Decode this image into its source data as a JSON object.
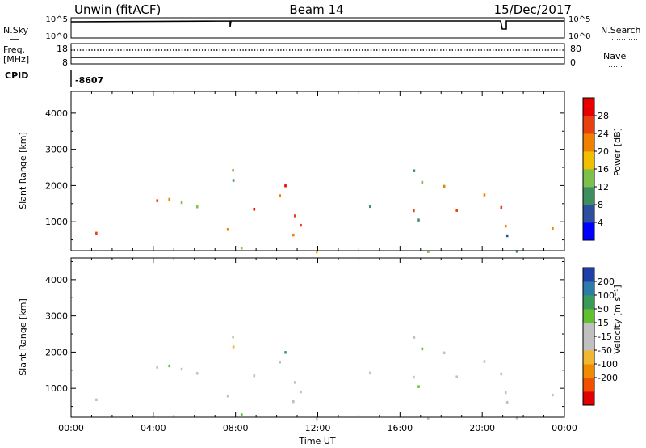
{
  "header": {
    "station": "Unwin (fitACF)",
    "beam": "Beam 14",
    "date": "15/Dec/2017"
  },
  "strips": {
    "nsky_label": "N.Sky",
    "nsearch_label": "N.Search",
    "freq_label_line1": "Freq.",
    "freq_label_line2": "[MHz]",
    "nave_label": "Nave",
    "cpid_label": "CPID",
    "cpid_value": "-8607",
    "noise_ticks": [
      "10^5",
      "10^0"
    ],
    "freq_ticks": [
      "18",
      "8"
    ],
    "nave_ticks": [
      "80",
      "0"
    ]
  },
  "colors": {
    "power_scale": [
      "#0000ff",
      "#2e4f9e",
      "#3d8f5f",
      "#7dc04a",
      "#f0c000",
      "#f08000",
      "#e84010",
      "#e80000"
    ],
    "velocity_scale": [
      "#e00000",
      "#f05000",
      "#f08c00",
      "#f0b830",
      "#c0c0c0",
      "#c0c0c0",
      "#60c030",
      "#3a9a58",
      "#2e7aa8",
      "#1e3ea8"
    ]
  },
  "chart_data": [
    {
      "type": "heatmap",
      "panel": "power",
      "ylabel": "Slant Range [km]",
      "xlabel": "",
      "x_ticks": [
        "00:00",
        "04:00",
        "08:00",
        "12:00",
        "16:00",
        "20:00",
        "00:00"
      ],
      "y_ticks": [
        "1000",
        "2000",
        "3000",
        "4000"
      ],
      "ylim": [
        200,
        4600
      ],
      "xlim_hours": [
        0,
        24
      ],
      "colorbar": {
        "label": "Power [dB]",
        "ticks": [
          "4",
          "8",
          "12",
          "16",
          "20",
          "24",
          "28"
        ],
        "range": [
          0,
          32
        ]
      }
    },
    {
      "type": "heatmap",
      "panel": "velocity",
      "ylabel": "Slant Range [km]",
      "xlabel": "Time UT",
      "x_ticks": [
        "00:00",
        "04:00",
        "08:00",
        "12:00",
        "16:00",
        "20:00",
        "00:00"
      ],
      "y_ticks": [
        "1000",
        "2000",
        "3000",
        "4000"
      ],
      "ylim": [
        200,
        4600
      ],
      "xlim_hours": [
        0,
        24
      ],
      "colorbar": {
        "label": "Velocity [m s⁻¹]",
        "ticks": [
          "200",
          "100",
          "50",
          "15",
          "-15",
          "-50",
          "-100",
          "-200"
        ]
      }
    }
  ]
}
